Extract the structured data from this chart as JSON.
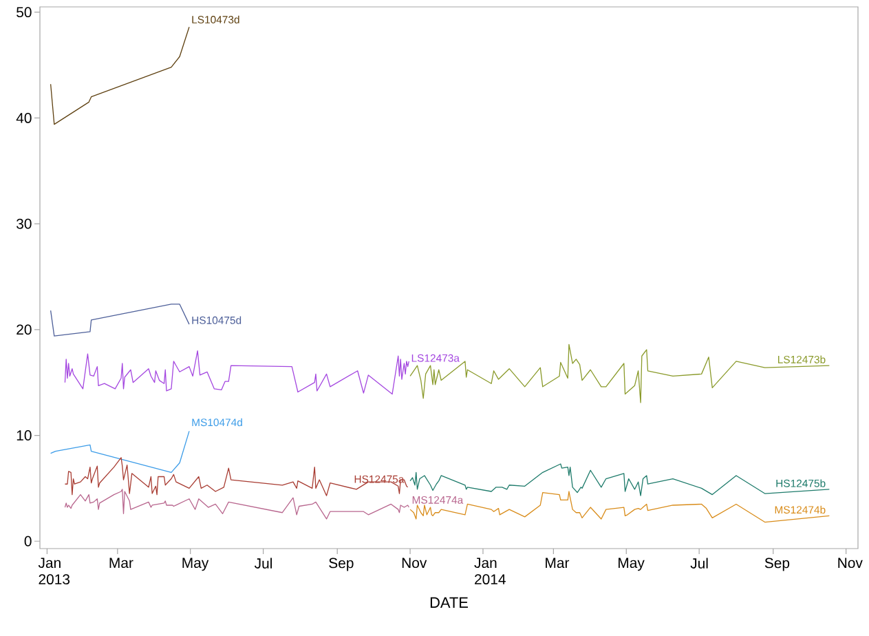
{
  "chart_data": {
    "type": "line",
    "xlabel": "DATE",
    "xlim": [
      "2012-12-26",
      "2014-11-11"
    ],
    "ylim": [
      -0.7,
      50.5
    ],
    "xticks": [
      {
        "value": "2013-01-01",
        "label": "Jan 2013"
      },
      {
        "value": "2013-03-01",
        "label": "Mar"
      },
      {
        "value": "2013-05-01",
        "label": "May"
      },
      {
        "value": "2013-07-01",
        "label": "Jul"
      },
      {
        "value": "2013-09-01",
        "label": "Sep"
      },
      {
        "value": "2013-11-01",
        "label": "Nov"
      },
      {
        "value": "2014-01-01",
        "label": "Jan 2014"
      },
      {
        "value": "2014-03-01",
        "label": "Mar"
      },
      {
        "value": "2014-05-01",
        "label": "May"
      },
      {
        "value": "2014-07-01",
        "label": "Jul"
      },
      {
        "value": "2014-09-01",
        "label": "Sep"
      },
      {
        "value": "2014-11-01",
        "label": "Nov"
      }
    ],
    "yticks": [
      0,
      10,
      20,
      30,
      40,
      50
    ],
    "grid": false,
    "line_style": "solid",
    "marker": "none",
    "series": [
      {
        "name": "LS10473d",
        "color": "#5e4010",
        "x": [
          "2013-01-04",
          "2013-01-07",
          "2013-02-05",
          "2013-02-07",
          "2013-04-15",
          "2013-04-22",
          "2013-04-30"
        ],
        "values": [
          43.2,
          39.4,
          41.5,
          42.0,
          44.8,
          45.8,
          48.6
        ]
      },
      {
        "name": "HS10475d",
        "color": "#4d5f99",
        "x": [
          "2013-01-04",
          "2013-01-07",
          "2013-02-06",
          "2013-02-07",
          "2013-04-15",
          "2013-04-22",
          "2013-04-30"
        ],
        "values": [
          21.8,
          19.4,
          19.8,
          20.9,
          22.4,
          22.4,
          20.5
        ]
      },
      {
        "name": "MS10474d",
        "color": "#3c9ce8",
        "x": [
          "2013-01-04",
          "2013-01-08",
          "2013-02-06",
          "2013-02-07",
          "2013-04-15",
          "2013-04-22",
          "2013-04-30"
        ],
        "values": [
          8.3,
          8.5,
          9.1,
          8.5,
          6.5,
          7.4,
          10.4
        ]
      },
      {
        "name": "LS12473a",
        "color": "#a447e0",
        "x": [
          "2013-01-16",
          "2013-01-17",
          "2013-01-18",
          "2013-01-19",
          "2013-01-20",
          "2013-01-22",
          "2013-01-23",
          "2013-01-27",
          "2013-01-31",
          "2013-02-04",
          "2013-02-06",
          "2013-02-09",
          "2013-02-12",
          "2013-02-13",
          "2013-02-18",
          "2013-02-27",
          "2013-03-04",
          "2013-03-05",
          "2013-03-06",
          "2013-03-07",
          "2013-03-12",
          "2013-03-14",
          "2013-03-27",
          "2013-03-29",
          "2013-04-01",
          "2013-04-02",
          "2013-04-05",
          "2013-04-09",
          "2013-04-10",
          "2013-04-11",
          "2013-04-15",
          "2013-04-17",
          "2013-04-22",
          "2013-04-30",
          "2013-05-03",
          "2013-05-07",
          "2013-05-09",
          "2013-05-15",
          "2013-05-21",
          "2013-05-27",
          "2013-05-30",
          "2013-06-02",
          "2013-06-04",
          "2013-07-25",
          "2013-07-30",
          "2013-08-13",
          "2013-08-14",
          "2013-08-15",
          "2013-08-23",
          "2013-08-26",
          "2013-09-18",
          "2013-09-23",
          "2013-09-27",
          "2013-10-17",
          "2013-10-22",
          "2013-10-23",
          "2013-10-24",
          "2013-10-25",
          "2013-10-27",
          "2013-10-28",
          "2013-10-29",
          "2013-10-30",
          "2013-10-31"
        ],
        "values": [
          15.0,
          17.2,
          15.4,
          16.8,
          15.6,
          16.3,
          15.8,
          15.1,
          14.4,
          17.7,
          15.7,
          15.6,
          16.5,
          14.7,
          14.9,
          14.4,
          15.4,
          16.8,
          14.4,
          15.5,
          16.2,
          15.0,
          16.3,
          15.6,
          15.0,
          16.1,
          15.2,
          14.9,
          16.2,
          14.2,
          14.4,
          17.0,
          16.0,
          16.5,
          15.6,
          18.0,
          15.7,
          16.0,
          14.4,
          14.3,
          15.1,
          15.1,
          16.6,
          16.5,
          14.1,
          15.0,
          15.8,
          14.2,
          15.8,
          14.6,
          16.1,
          14.0,
          15.7,
          13.9,
          17.5,
          15.6,
          17.2,
          15.3,
          16.8,
          15.8,
          17.0,
          16.5,
          17.0
        ]
      },
      {
        "name": "HS12475a",
        "color": "#a83c32",
        "x": [
          "2013-01-16",
          "2013-01-18",
          "2013-01-19",
          "2013-01-21",
          "2013-01-22",
          "2013-01-23",
          "2013-01-24",
          "2013-01-29",
          "2013-02-02",
          "2013-02-04",
          "2013-02-06",
          "2013-02-07",
          "2013-02-08",
          "2013-02-12",
          "2013-02-13",
          "2013-02-14",
          "2013-02-26",
          "2013-03-04",
          "2013-03-05",
          "2013-03-06",
          "2013-03-09",
          "2013-03-11",
          "2013-03-13",
          "2013-03-27",
          "2013-03-29",
          "2013-03-30",
          "2013-04-02",
          "2013-04-03",
          "2013-04-04",
          "2013-04-09",
          "2013-04-10",
          "2013-04-15",
          "2013-04-17",
          "2013-04-19",
          "2013-04-30",
          "2013-05-08",
          "2013-05-10",
          "2013-05-15",
          "2013-05-22",
          "2013-05-29",
          "2013-06-02",
          "2013-06-04",
          "2013-07-17",
          "2013-07-26",
          "2013-07-29",
          "2013-07-30",
          "2013-08-11",
          "2013-08-13",
          "2013-08-14",
          "2013-08-17",
          "2013-08-23",
          "2013-08-26",
          "2013-09-17",
          "2013-09-27",
          "2013-10-16",
          "2013-10-22",
          "2013-10-23",
          "2013-10-24",
          "2013-10-27",
          "2013-10-29",
          "2013-10-30"
        ],
        "values": [
          5.4,
          5.4,
          6.6,
          6.5,
          4.4,
          5.9,
          5.4,
          5.6,
          6.1,
          5.9,
          7.0,
          5.5,
          5.9,
          7.1,
          5.1,
          5.5,
          7.0,
          7.9,
          7.1,
          5.8,
          7.2,
          4.5,
          6.4,
          5.1,
          6.1,
          4.5,
          5.2,
          4.4,
          6.1,
          6.1,
          5.3,
          5.9,
          6.3,
          5.6,
          5.0,
          6.1,
          5.0,
          5.3,
          4.7,
          5.1,
          6.9,
          5.8,
          5.3,
          5.6,
          5.0,
          5.7,
          5.0,
          7.0,
          5.0,
          5.8,
          4.3,
          5.5,
          4.9,
          5.6,
          5.6,
          5.2,
          4.5,
          5.8,
          5.8,
          5.2,
          5.1
        ]
      },
      {
        "name": "MS12474a",
        "color": "#b8668e",
        "x": [
          "2013-01-16",
          "2013-01-17",
          "2013-01-18",
          "2013-01-19",
          "2013-01-21",
          "2013-01-22",
          "2013-01-29",
          "2013-02-02",
          "2013-02-05",
          "2013-02-06",
          "2013-02-09",
          "2013-02-12",
          "2013-02-13",
          "2013-02-14",
          "2013-02-26",
          "2013-03-04",
          "2013-03-05",
          "2013-03-06",
          "2013-03-07",
          "2013-03-11",
          "2013-03-12",
          "2013-03-27",
          "2013-03-29",
          "2013-03-30",
          "2013-04-04",
          "2013-04-09",
          "2013-04-10",
          "2013-04-11",
          "2013-04-16",
          "2013-04-17",
          "2013-04-30",
          "2013-05-05",
          "2013-05-08",
          "2013-05-16",
          "2013-05-22",
          "2013-05-28",
          "2013-06-02",
          "2013-07-17",
          "2013-07-26",
          "2013-07-29",
          "2013-07-31",
          "2013-08-11",
          "2013-08-14",
          "2013-08-23",
          "2013-08-26",
          "2013-09-23",
          "2013-09-27",
          "2013-10-16",
          "2013-10-22",
          "2013-10-23",
          "2013-10-24",
          "2013-10-27",
          "2013-10-30",
          "2013-10-31"
        ],
        "values": [
          3.2,
          3.6,
          3.2,
          3.4,
          3.1,
          3.4,
          4.4,
          3.8,
          4.4,
          3.6,
          3.7,
          4.0,
          3.0,
          3.6,
          4.4,
          4.7,
          4.9,
          2.6,
          4.7,
          3.8,
          3.0,
          3.7,
          3.2,
          3.4,
          3.5,
          3.6,
          3.8,
          3.4,
          3.4,
          3.3,
          4.0,
          3.0,
          4.0,
          3.2,
          3.5,
          2.6,
          3.7,
          2.7,
          4.1,
          2.5,
          3.3,
          3.5,
          3.7,
          2.1,
          2.8,
          2.8,
          2.5,
          3.5,
          3.0,
          2.7,
          3.4,
          3.2,
          3.4,
          3.2
        ]
      },
      {
        "name": "LS12473b",
        "color": "#8a9a2a",
        "x": [
          "2013-11-01",
          "2013-11-04",
          "2013-11-07",
          "2013-11-10",
          "2013-11-12",
          "2013-11-14",
          "2013-11-18",
          "2013-11-20",
          "2013-11-21",
          "2013-11-22",
          "2013-11-25",
          "2013-11-27",
          "2013-12-17",
          "2013-12-18",
          "2013-12-19",
          "2014-01-08",
          "2014-01-10",
          "2014-01-14",
          "2014-01-23",
          "2014-02-05",
          "2014-02-18",
          "2014-02-20",
          "2014-03-06",
          "2014-03-07",
          "2014-03-13",
          "2014-03-14",
          "2014-03-17",
          "2014-03-20",
          "2014-03-23",
          "2014-03-25",
          "2014-04-01",
          "2014-04-10",
          "2014-04-14",
          "2014-04-29",
          "2014-04-30",
          "2014-05-08",
          "2014-05-11",
          "2014-05-13",
          "2014-05-14",
          "2014-05-18",
          "2014-05-19",
          "2014-06-09",
          "2014-07-03",
          "2014-07-09",
          "2014-07-12",
          "2014-08-01",
          "2014-08-25",
          "2014-10-18"
        ],
        "values": [
          15.6,
          16.1,
          16.6,
          15.2,
          13.5,
          15.8,
          16.6,
          14.8,
          16.2,
          14.8,
          16.2,
          15.2,
          17.0,
          15.5,
          16.2,
          14.9,
          16.1,
          15.3,
          16.3,
          14.6,
          16.4,
          14.6,
          15.6,
          16.9,
          15.4,
          18.6,
          16.8,
          17.2,
          16.7,
          15.2,
          16.2,
          14.6,
          14.6,
          16.8,
          13.9,
          14.7,
          16.1,
          13.1,
          17.5,
          18.1,
          16.1,
          15.6,
          15.8,
          17.4,
          14.5,
          17.0,
          16.4,
          16.6
        ]
      },
      {
        "name": "HS12475b",
        "color": "#1e7b6b",
        "x": [
          "2013-11-01",
          "2013-11-03",
          "2013-11-05",
          "2013-11-06",
          "2013-11-07",
          "2013-11-09",
          "2013-11-13",
          "2013-11-18",
          "2013-11-20",
          "2013-11-23",
          "2013-11-25",
          "2013-11-27",
          "2013-12-17",
          "2013-12-18",
          "2013-12-19",
          "2014-01-08",
          "2014-01-12",
          "2014-01-17",
          "2014-01-21",
          "2014-01-23",
          "2014-02-05",
          "2014-02-20",
          "2014-03-07",
          "2014-03-08",
          "2014-03-13",
          "2014-03-14",
          "2014-03-15",
          "2014-03-17",
          "2014-03-21",
          "2014-03-24",
          "2014-03-25",
          "2014-04-01",
          "2014-04-10",
          "2014-04-14",
          "2014-04-29",
          "2014-04-30",
          "2014-05-03",
          "2014-05-08",
          "2014-05-11",
          "2014-05-13",
          "2014-05-15",
          "2014-05-18",
          "2014-05-19",
          "2014-06-09",
          "2014-07-03",
          "2014-07-12",
          "2014-08-01",
          "2014-08-25",
          "2014-10-18"
        ],
        "values": [
          5.7,
          6.0,
          5.3,
          6.5,
          4.9,
          5.9,
          6.2,
          5.3,
          4.8,
          5.4,
          5.7,
          6.2,
          5.3,
          4.9,
          5.1,
          4.7,
          5.1,
          5.1,
          4.9,
          5.3,
          5.2,
          6.5,
          7.3,
          6.9,
          7.0,
          6.2,
          7.0,
          5.1,
          4.6,
          5.1,
          5.0,
          6.7,
          5.1,
          5.9,
          6.4,
          4.7,
          5.9,
          4.9,
          5.6,
          4.3,
          5.9,
          6.2,
          5.4,
          5.9,
          5.0,
          4.4,
          6.2,
          4.5,
          4.9
        ]
      },
      {
        "name": "MS12474b",
        "color": "#d98c1a",
        "x": [
          "2013-11-01",
          "2013-11-04",
          "2013-11-06",
          "2013-11-07",
          "2013-11-10",
          "2013-11-12",
          "2013-11-13",
          "2013-11-15",
          "2013-11-18",
          "2013-11-19",
          "2013-11-20",
          "2013-11-22",
          "2013-11-25",
          "2013-11-27",
          "2013-12-17",
          "2013-12-19",
          "2014-01-08",
          "2014-01-10",
          "2014-01-14",
          "2014-01-15",
          "2014-01-23",
          "2014-02-05",
          "2014-02-18",
          "2014-02-20",
          "2014-03-06",
          "2014-03-07",
          "2014-03-13",
          "2014-03-14",
          "2014-03-15",
          "2014-03-17",
          "2014-03-20",
          "2014-03-23",
          "2014-03-25",
          "2014-04-01",
          "2014-04-10",
          "2014-04-14",
          "2014-04-29",
          "2014-04-30",
          "2014-05-02",
          "2014-05-08",
          "2014-05-11",
          "2014-05-13",
          "2014-05-15",
          "2014-05-18",
          "2014-05-19",
          "2014-06-09",
          "2014-07-03",
          "2014-07-07",
          "2014-07-12",
          "2014-08-01",
          "2014-08-25",
          "2014-10-18"
        ],
        "values": [
          3.0,
          2.7,
          2.1,
          3.4,
          2.7,
          2.4,
          3.4,
          2.5,
          3.2,
          2.5,
          2.4,
          2.7,
          2.7,
          3.0,
          2.5,
          3.5,
          3.0,
          2.8,
          3.1,
          2.5,
          3.0,
          2.3,
          3.4,
          4.6,
          4.4,
          3.9,
          3.9,
          4.7,
          4.1,
          3.0,
          2.7,
          2.7,
          2.2,
          3.2,
          2.1,
          3.0,
          3.2,
          2.4,
          2.5,
          3.0,
          3.1,
          3.0,
          3.2,
          3.5,
          2.9,
          3.4,
          3.5,
          3.1,
          2.2,
          3.5,
          1.8,
          2.4
        ]
      }
    ]
  }
}
